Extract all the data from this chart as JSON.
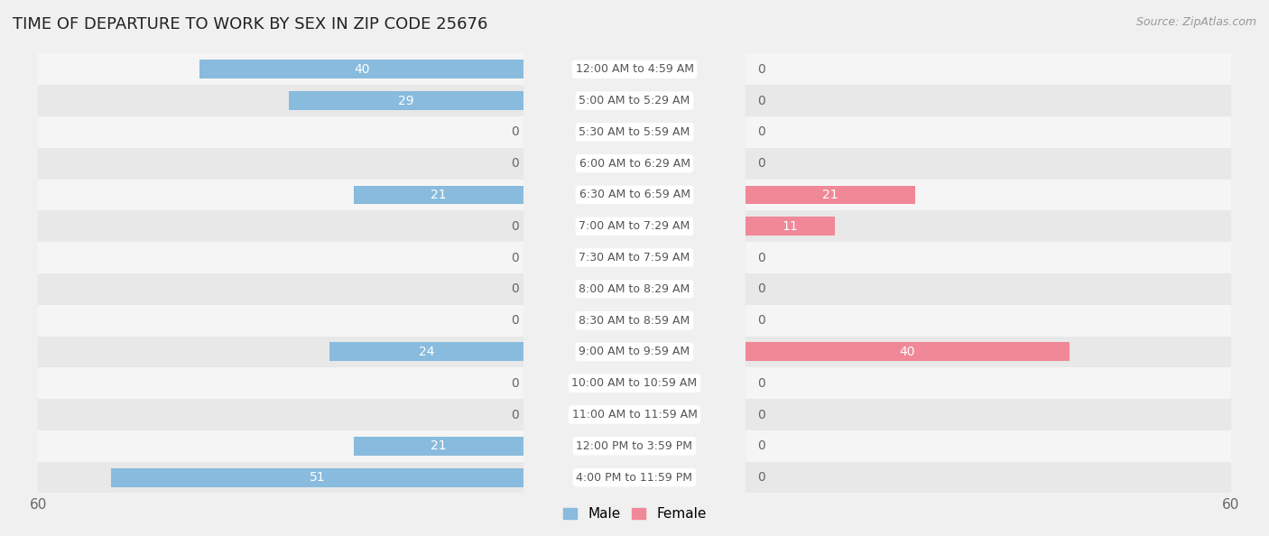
{
  "title": "TIME OF DEPARTURE TO WORK BY SEX IN ZIP CODE 25676",
  "source": "Source: ZipAtlas.com",
  "categories": [
    "12:00 AM to 4:59 AM",
    "5:00 AM to 5:29 AM",
    "5:30 AM to 5:59 AM",
    "6:00 AM to 6:29 AM",
    "6:30 AM to 6:59 AM",
    "7:00 AM to 7:29 AM",
    "7:30 AM to 7:59 AM",
    "8:00 AM to 8:29 AM",
    "8:30 AM to 8:59 AM",
    "9:00 AM to 9:59 AM",
    "10:00 AM to 10:59 AM",
    "11:00 AM to 11:59 AM",
    "12:00 PM to 3:59 PM",
    "4:00 PM to 11:59 PM"
  ],
  "male_values": [
    40,
    29,
    0,
    0,
    21,
    0,
    0,
    0,
    0,
    24,
    0,
    0,
    21,
    51
  ],
  "female_values": [
    0,
    0,
    0,
    0,
    21,
    11,
    0,
    0,
    0,
    40,
    0,
    0,
    0,
    0
  ],
  "male_color": "#88bbdd",
  "female_color": "#f08898",
  "male_label": "Male",
  "female_label": "Female",
  "label_inside_color": "#ffffff",
  "label_outside_color": "#666666",
  "bar_height": 0.6,
  "xlim": 60,
  "title_fontsize": 13,
  "source_fontsize": 9,
  "axis_fontsize": 11,
  "value_fontsize": 10,
  "cat_fontsize": 9,
  "bg_color": "#f0f0f0",
  "row_color_odd": "#f5f5f5",
  "row_color_even": "#e8e8e8",
  "cat_label_color": "#555555",
  "tick_color": "#666666"
}
